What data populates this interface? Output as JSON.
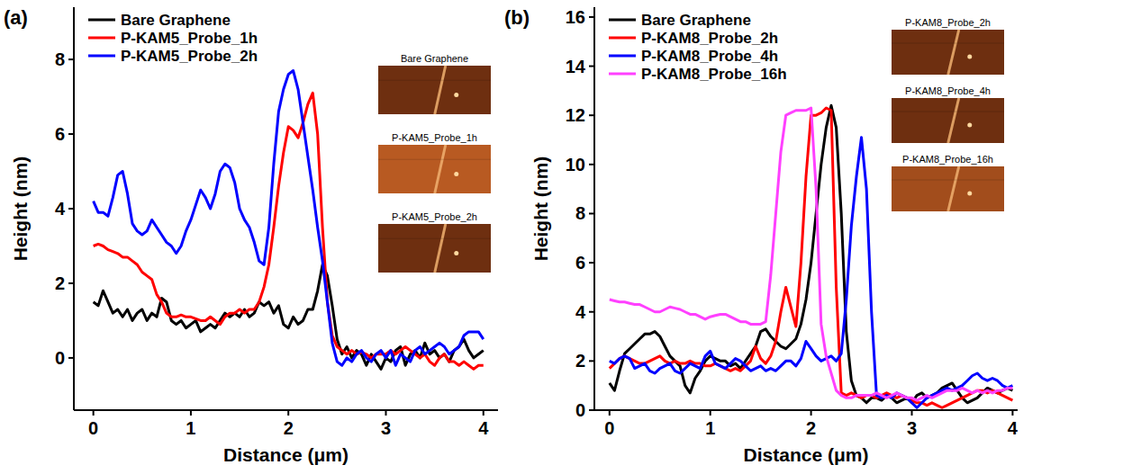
{
  "chart_data": [
    {
      "type": "line",
      "title": "(a)",
      "xlabel": "Distance (μm)",
      "ylabel": "Height (nm)",
      "xlim": [
        -0.2,
        4.15
      ],
      "xticks": [
        0,
        1,
        2,
        3,
        4
      ],
      "ylim": [
        -1.4,
        9.4
      ],
      "yticks": [
        0,
        2,
        4,
        6,
        8
      ],
      "grid": false,
      "legend": "upper left",
      "annotations": [
        "Bare Graphene",
        "P-KAM5_Probe_1h",
        "P-KAM5_Probe_2h"
      ],
      "x": [
        0,
        0.05,
        0.1,
        0.15,
        0.2,
        0.25,
        0.3,
        0.35,
        0.4,
        0.45,
        0.5,
        0.55,
        0.6,
        0.65,
        0.7,
        0.75,
        0.8,
        0.85,
        0.9,
        0.95,
        1,
        1.05,
        1.1,
        1.15,
        1.2,
        1.25,
        1.3,
        1.35,
        1.4,
        1.45,
        1.5,
        1.55,
        1.6,
        1.65,
        1.7,
        1.75,
        1.8,
        1.85,
        1.9,
        1.95,
        2,
        2.05,
        2.1,
        2.15,
        2.2,
        2.25,
        2.3,
        2.35,
        2.4,
        2.45,
        2.5,
        2.55,
        2.6,
        2.65,
        2.7,
        2.75,
        2.8,
        2.85,
        2.9,
        2.95,
        3,
        3.05,
        3.1,
        3.15,
        3.2,
        3.25,
        3.3,
        3.35,
        3.4,
        3.45,
        3.5,
        3.55,
        3.6,
        3.65,
        3.7,
        3.75,
        3.8,
        3.85,
        3.9,
        3.95,
        4
      ],
      "series": [
        {
          "name": "Bare Graphene",
          "color": "#000000",
          "values": [
            1.5,
            1.4,
            1.8,
            1.5,
            1.2,
            1.3,
            1.1,
            1.3,
            1.0,
            1.2,
            1.3,
            1.0,
            1.2,
            1.1,
            1.6,
            1.5,
            1.0,
            0.9,
            1.0,
            0.8,
            0.9,
            1.0,
            0.7,
            0.8,
            0.9,
            0.8,
            1.0,
            1.2,
            1.1,
            1.2,
            1.1,
            1.3,
            1.1,
            1.2,
            1.5,
            1.4,
            1.5,
            1.2,
            1.4,
            0.9,
            0.8,
            1.1,
            0.9,
            1.0,
            1.3,
            1.3,
            1.8,
            2.5,
            2.2,
            1.4,
            0.5,
            0.1,
            0.3,
            0.0,
            0.2,
            0.1,
            -0.2,
            0.1,
            -0.1,
            -0.3,
            0.0,
            -0.1,
            0.2,
            0.3,
            -0.2,
            0.1,
            0.2,
            0.0,
            0.4,
            0.1,
            0.2,
            0.0,
            0.1,
            -0.1,
            0.2,
            0.3,
            0.5,
            0.2,
            0.0,
            0.1,
            0.2
          ]
        },
        {
          "name": "P-KAM5_Probe_1h",
          "color": "#ff0000",
          "values": [
            3.0,
            3.05,
            3.0,
            2.9,
            2.85,
            2.8,
            2.7,
            2.7,
            2.6,
            2.5,
            2.3,
            2.2,
            2.1,
            1.7,
            1.5,
            1.2,
            1.1,
            1.1,
            1.15,
            1.1,
            1.1,
            1.05,
            1.0,
            1.0,
            1.1,
            1.0,
            0.9,
            1.1,
            1.2,
            1.2,
            1.3,
            1.2,
            1.3,
            1.3,
            1.5,
            1.9,
            2.5,
            3.5,
            4.6,
            5.5,
            6.2,
            6.1,
            5.9,
            6.3,
            6.8,
            7.1,
            6.0,
            3.5,
            1.5,
            0.6,
            0.3,
            0.2,
            0.1,
            0.2,
            0.1,
            0.15,
            0.1,
            0.0,
            0.1,
            0.1,
            0.1,
            0.2,
            0.1,
            0.2,
            0.3,
            0.2,
            0.1,
            0.0,
            0.1,
            -0.1,
            -0.2,
            0.0,
            0.1,
            -0.1,
            -0.1,
            -0.2,
            -0.1,
            -0.2,
            -0.3,
            -0.2,
            -0.2
          ]
        },
        {
          "name": "P-KAM5_Probe_2h",
          "color": "#0000ff",
          "values": [
            4.2,
            3.9,
            3.9,
            3.8,
            4.3,
            4.9,
            5.0,
            4.4,
            3.6,
            3.4,
            3.3,
            3.4,
            3.7,
            3.5,
            3.3,
            3.1,
            3.0,
            2.8,
            3.0,
            3.4,
            3.7,
            4.1,
            4.5,
            4.3,
            4.0,
            4.4,
            5.0,
            5.2,
            5.1,
            4.7,
            4.0,
            3.7,
            3.5,
            3.1,
            2.6,
            2.5,
            3.5,
            5.2,
            6.6,
            7.2,
            7.6,
            7.7,
            7.2,
            6.3,
            5.4,
            4.5,
            3.5,
            2.6,
            1.5,
            0.4,
            -0.1,
            -0.2,
            0.0,
            -0.1,
            0.1,
            0.2,
            0.0,
            -0.1,
            0.1,
            0.2,
            0.0,
            0.2,
            -0.2,
            0.1,
            0.0,
            -0.1,
            0.2,
            0.3,
            0.1,
            0.2,
            0.3,
            0.4,
            0.3,
            0.1,
            0.2,
            0.3,
            0.6,
            0.7,
            0.7,
            0.7,
            0.5
          ]
        }
      ]
    },
    {
      "type": "line",
      "title": "(b)",
      "xlabel": "Distance (μm)",
      "ylabel": "Height (nm)",
      "xlim": [
        -0.15,
        4.05
      ],
      "xticks": [
        0,
        1,
        2,
        3,
        4
      ],
      "ylim": [
        0,
        16.4
      ],
      "yticks": [
        0,
        2,
        4,
        6,
        8,
        10,
        12,
        14,
        16
      ],
      "grid": false,
      "legend": "upper left",
      "annotations": [
        "P-KAM8_Probe_2h",
        "P-KAM8_Probe_4h",
        "P-KAM8_Probe_16h"
      ],
      "x": [
        0,
        0.05,
        0.1,
        0.15,
        0.2,
        0.25,
        0.3,
        0.35,
        0.4,
        0.45,
        0.5,
        0.55,
        0.6,
        0.65,
        0.7,
        0.75,
        0.8,
        0.85,
        0.9,
        0.95,
        1,
        1.05,
        1.1,
        1.15,
        1.2,
        1.25,
        1.3,
        1.35,
        1.4,
        1.45,
        1.5,
        1.55,
        1.6,
        1.65,
        1.7,
        1.75,
        1.8,
        1.85,
        1.9,
        1.95,
        2,
        2.05,
        2.1,
        2.15,
        2.2,
        2.25,
        2.3,
        2.35,
        2.4,
        2.45,
        2.5,
        2.55,
        2.6,
        2.65,
        2.7,
        2.75,
        2.8,
        2.85,
        2.9,
        2.95,
        3,
        3.05,
        3.1,
        3.15,
        3.2,
        3.25,
        3.3,
        3.35,
        3.4,
        3.45,
        3.5,
        3.55,
        3.6,
        3.65,
        3.7,
        3.75,
        3.8,
        3.85,
        3.9,
        3.95,
        4
      ],
      "series": [
        {
          "name": "Bare Graphene",
          "color": "#000000",
          "values": [
            1.1,
            0.8,
            1.6,
            2.3,
            2.5,
            2.7,
            2.9,
            3.1,
            3.1,
            3.2,
            3.0,
            2.6,
            2.2,
            2.0,
            1.8,
            1.0,
            0.7,
            1.3,
            1.6,
            2.0,
            2.2,
            2.1,
            2.0,
            2.0,
            1.8,
            1.9,
            1.7,
            2.0,
            2.3,
            2.6,
            3.2,
            3.3,
            3.0,
            2.8,
            2.6,
            2.5,
            2.7,
            2.9,
            3.5,
            4.5,
            6.0,
            8.0,
            10.0,
            11.5,
            12.4,
            11.5,
            8.0,
            3.2,
            1.2,
            0.6,
            0.5,
            0.3,
            0.5,
            0.5,
            0.4,
            0.6,
            0.5,
            0.3,
            0.4,
            0.5,
            0.3,
            0.6,
            0.7,
            0.5,
            0.6,
            0.7,
            0.9,
            1.0,
            1.1,
            0.8,
            0.5,
            0.3,
            0.4,
            0.5,
            0.7,
            0.9,
            0.8,
            0.7,
            0.8,
            0.9,
            0.8
          ]
        },
        {
          "name": "P-KAM8_Probe_2h",
          "color": "#ff0000",
          "values": [
            1.7,
            1.9,
            2.1,
            2.2,
            2.1,
            2.0,
            1.9,
            1.9,
            2.0,
            2.1,
            2.2,
            2.0,
            1.9,
            2.0,
            1.9,
            1.9,
            2.0,
            1.9,
            1.9,
            1.8,
            1.8,
            1.9,
            1.8,
            1.7,
            1.6,
            1.7,
            1.6,
            1.8,
            2.0,
            2.6,
            2.1,
            1.9,
            2.2,
            2.8,
            4.0,
            5.0,
            4.2,
            3.4,
            6.0,
            9.5,
            12.0,
            12.0,
            12.1,
            12.3,
            12.2,
            5.0,
            0.7,
            0.6,
            0.7,
            0.6,
            0.5,
            0.6,
            0.6,
            0.5,
            0.6,
            0.7,
            0.6,
            0.5,
            0.6,
            0.5,
            0.4,
            0.3,
            0.3,
            0.2,
            0.3,
            0.2,
            0.1,
            0.2,
            0.3,
            0.4,
            0.5,
            0.6,
            0.7,
            0.8,
            0.8,
            0.7,
            0.8,
            0.7,
            0.6,
            0.5,
            0.4
          ]
        },
        {
          "name": "P-KAM8_Probe_4h",
          "color": "#0000ff",
          "values": [
            2.0,
            1.9,
            2.1,
            2.2,
            2.1,
            1.7,
            1.8,
            1.9,
            1.6,
            1.5,
            1.7,
            1.8,
            1.9,
            1.6,
            1.5,
            1.7,
            1.9,
            1.8,
            1.7,
            2.2,
            2.4,
            1.9,
            1.8,
            1.7,
            1.9,
            2.1,
            2.0,
            1.8,
            1.6,
            1.7,
            1.8,
            1.6,
            1.7,
            1.6,
            1.8,
            2.0,
            2.0,
            1.8,
            2.1,
            2.8,
            2.5,
            2.2,
            2.0,
            2.1,
            2.2,
            2.0,
            2.3,
            4.5,
            7.5,
            9.5,
            11.1,
            9.0,
            4.0,
            0.6,
            0.5,
            0.6,
            0.5,
            0.7,
            0.6,
            0.5,
            0.3,
            0.1,
            0.3,
            0.5,
            0.6,
            0.7,
            0.8,
            0.9,
            0.8,
            0.9,
            1.0,
            1.2,
            1.4,
            1.5,
            1.3,
            1.2,
            1.3,
            1.2,
            1.0,
            0.9,
            1.0
          ]
        },
        {
          "name": "P-KAM8_Probe_16h",
          "color": "#ff40ff",
          "values": [
            4.5,
            4.45,
            4.4,
            4.4,
            4.35,
            4.3,
            4.3,
            4.2,
            4.1,
            4.0,
            4.0,
            4.1,
            4.2,
            4.15,
            4.1,
            4.0,
            3.9,
            3.9,
            3.8,
            3.7,
            3.8,
            3.85,
            3.9,
            3.9,
            3.8,
            3.7,
            3.6,
            3.6,
            3.5,
            3.5,
            3.5,
            3.6,
            5.5,
            8.0,
            10.5,
            12.0,
            12.1,
            12.2,
            12.2,
            12.2,
            12.3,
            9.0,
            3.5,
            2.2,
            1.5,
            0.8,
            0.6,
            0.5,
            0.5,
            0.6,
            0.6,
            0.6,
            0.6,
            0.7,
            0.6,
            0.5,
            0.6,
            0.7,
            0.6,
            0.5,
            0.5,
            0.4,
            0.5,
            0.6,
            0.5,
            0.6,
            0.7,
            0.8,
            0.8,
            0.8,
            0.9,
            0.8,
            0.7,
            0.8,
            0.7,
            0.8,
            0.7,
            0.8,
            0.8,
            0.9,
            0.9
          ]
        }
      ]
    }
  ]
}
